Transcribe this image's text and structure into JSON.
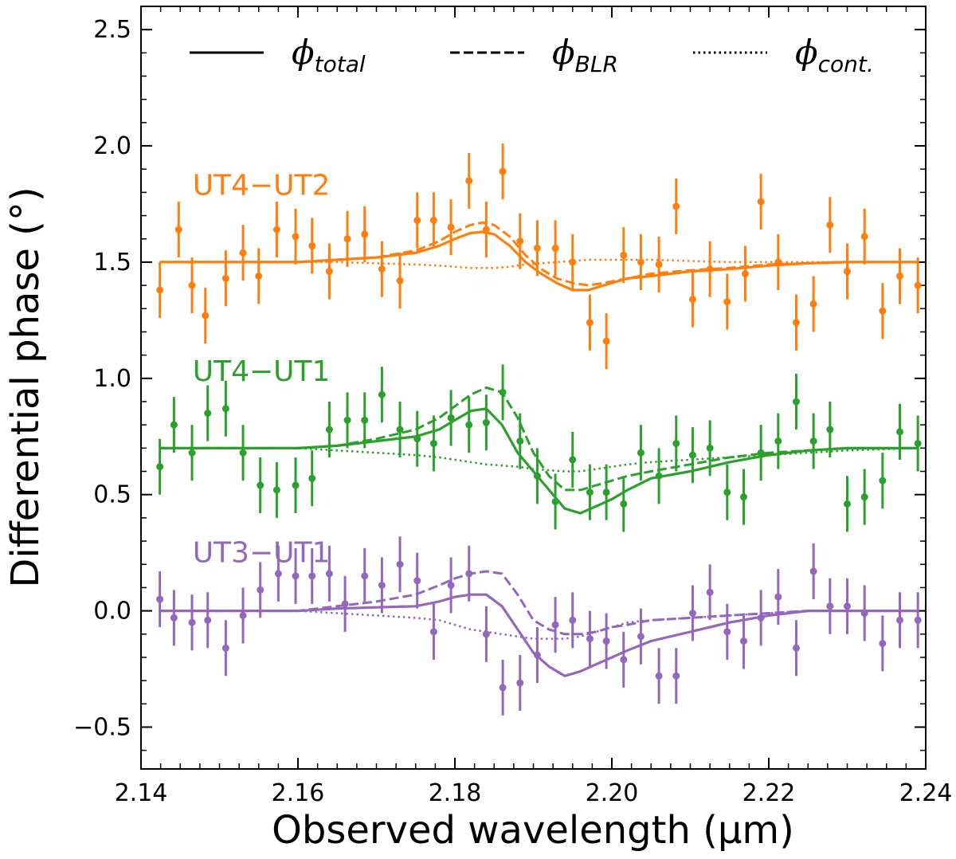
{
  "chart_data": {
    "type": "line",
    "title": "",
    "xlabel": "Observed wavelength (μm)",
    "ylabel": "Differential phase (°)",
    "xlim": [
      2.14,
      2.24
    ],
    "ylim": [
      -0.68,
      2.6
    ],
    "xticks": [
      {
        "value": 2.14,
        "label": "2.14"
      },
      {
        "value": 2.16,
        "label": "2.16"
      },
      {
        "value": 2.18,
        "label": "2.18"
      },
      {
        "value": 2.2,
        "label": "2.20"
      },
      {
        "value": 2.22,
        "label": "2.22"
      },
      {
        "value": 2.24,
        "label": "2.24"
      }
    ],
    "yticks": [
      {
        "value": -0.5,
        "label": "−0.5"
      },
      {
        "value": 0.0,
        "label": "0.0"
      },
      {
        "value": 0.5,
        "label": "0.5"
      },
      {
        "value": 1.0,
        "label": "1.0"
      },
      {
        "value": 1.5,
        "label": "1.5"
      },
      {
        "value": 2.0,
        "label": "2.0"
      },
      {
        "value": 2.5,
        "label": "2.5"
      }
    ],
    "legend": {
      "position": "top",
      "entries": [
        {
          "style": "solid",
          "symbol": "ϕ",
          "sub": "total"
        },
        {
          "style": "dashed",
          "symbol": "ϕ",
          "sub": "BLR"
        },
        {
          "style": "dotted",
          "symbol": "ϕ",
          "sub": "cont."
        }
      ]
    },
    "series": [
      {
        "name": "UT4−UT2",
        "color": "#ff7f0e",
        "label_pos": [
          2.1415,
          1.83
        ],
        "x": [
          2.1424,
          2.1448,
          2.1465,
          2.1482,
          2.1508,
          2.153,
          2.155,
          2.1573,
          2.1597,
          2.1618,
          2.164,
          2.1663,
          2.1685,
          2.1707,
          2.173,
          2.1752,
          2.1773,
          2.1795,
          2.1818,
          2.184,
          2.1861,
          2.1883,
          2.1905,
          2.1928,
          2.195,
          2.1972,
          2.1993,
          2.2015,
          2.2037,
          2.206,
          2.2082,
          2.2103,
          2.2125,
          2.2147,
          2.217,
          2.219,
          2.2212,
          2.2235,
          2.2257,
          2.2278,
          2.23,
          2.2322,
          2.2345,
          2.2367,
          2.239
        ],
        "y": [
          1.38,
          1.64,
          1.4,
          1.27,
          1.43,
          1.54,
          1.44,
          1.64,
          1.61,
          1.57,
          1.46,
          1.6,
          1.62,
          1.47,
          1.42,
          1.68,
          1.68,
          1.65,
          1.85,
          1.64,
          1.89,
          1.59,
          1.56,
          1.56,
          1.5,
          1.24,
          1.16,
          1.53,
          1.5,
          1.49,
          1.74,
          1.34,
          1.47,
          1.33,
          1.45,
          1.76,
          1.5,
          1.24,
          1.32,
          1.66,
          1.46,
          1.61,
          1.29,
          1.44,
          1.4
        ],
        "err": [
          0.12,
          0.12,
          0.12,
          0.12,
          0.12,
          0.12,
          0.12,
          0.12,
          0.12,
          0.12,
          0.12,
          0.12,
          0.12,
          0.12,
          0.12,
          0.12,
          0.12,
          0.12,
          0.12,
          0.12,
          0.12,
          0.12,
          0.12,
          0.12,
          0.12,
          0.12,
          0.12,
          0.12,
          0.12,
          0.12,
          0.12,
          0.12,
          0.12,
          0.12,
          0.12,
          0.12,
          0.12,
          0.12,
          0.12,
          0.12,
          0.12,
          0.12,
          0.12,
          0.12,
          0.12
        ],
        "model_x": [
          2.1424,
          2.15,
          2.16,
          2.165,
          2.17,
          2.175,
          2.178,
          2.18,
          2.182,
          2.1835,
          2.185,
          2.187,
          2.189,
          2.191,
          2.193,
          2.195,
          2.197,
          2.199,
          2.202,
          2.205,
          2.21,
          2.215,
          2.22,
          2.225,
          2.23,
          2.239
        ],
        "total": [
          1.5,
          1.5,
          1.5,
          1.51,
          1.52,
          1.54,
          1.57,
          1.6,
          1.625,
          1.63,
          1.62,
          1.57,
          1.5,
          1.45,
          1.41,
          1.38,
          1.38,
          1.4,
          1.43,
          1.44,
          1.46,
          1.47,
          1.485,
          1.495,
          1.5,
          1.5
        ],
        "blr": [
          1.5,
          1.5,
          1.5,
          1.51,
          1.52,
          1.55,
          1.59,
          1.63,
          1.66,
          1.67,
          1.66,
          1.61,
          1.53,
          1.47,
          1.43,
          1.41,
          1.4,
          1.41,
          1.43,
          1.45,
          1.465,
          1.475,
          1.49,
          1.495,
          1.5,
          1.5
        ],
        "cont": [
          1.5,
          1.5,
          1.5,
          1.5,
          1.495,
          1.49,
          1.485,
          1.48,
          1.475,
          1.475,
          1.475,
          1.48,
          1.49,
          1.495,
          1.5,
          1.505,
          1.51,
          1.51,
          1.51,
          1.51,
          1.505,
          1.5,
          1.5,
          1.5,
          1.5,
          1.5
        ]
      },
      {
        "name": "UT4−UT1",
        "color": "#2ca02c",
        "label_pos": [
          2.1415,
          1.03
        ],
        "x": [
          2.1424,
          2.1442,
          2.1465,
          2.1485,
          2.1508,
          2.153,
          2.1552,
          2.1573,
          2.1597,
          2.1618,
          2.164,
          2.1663,
          2.1685,
          2.1707,
          2.173,
          2.1752,
          2.1773,
          2.1795,
          2.1818,
          2.184,
          2.1861,
          2.1883,
          2.1905,
          2.1928,
          2.195,
          2.1972,
          2.1993,
          2.2015,
          2.2037,
          2.206,
          2.2082,
          2.2103,
          2.2125,
          2.2147,
          2.2168,
          2.219,
          2.2212,
          2.2235,
          2.2257,
          2.2278,
          2.23,
          2.2322,
          2.2345,
          2.2367,
          2.239
        ],
        "y": [
          0.62,
          0.8,
          0.68,
          0.85,
          0.87,
          0.68,
          0.54,
          0.52,
          0.54,
          0.57,
          0.78,
          0.82,
          0.82,
          0.93,
          0.78,
          0.74,
          0.72,
          0.83,
          0.8,
          0.81,
          0.94,
          0.73,
          0.58,
          0.47,
          0.65,
          0.51,
          0.51,
          0.46,
          0.68,
          0.58,
          0.72,
          0.67,
          0.7,
          0.51,
          0.49,
          0.68,
          0.73,
          0.9,
          0.73,
          0.78,
          0.46,
          0.49,
          0.56,
          0.77,
          0.72
        ],
        "err": [
          0.12,
          0.12,
          0.12,
          0.12,
          0.12,
          0.12,
          0.12,
          0.12,
          0.12,
          0.12,
          0.12,
          0.12,
          0.12,
          0.12,
          0.12,
          0.12,
          0.12,
          0.12,
          0.12,
          0.12,
          0.12,
          0.12,
          0.12,
          0.12,
          0.12,
          0.12,
          0.12,
          0.12,
          0.12,
          0.12,
          0.12,
          0.12,
          0.12,
          0.12,
          0.12,
          0.12,
          0.12,
          0.12,
          0.12,
          0.12,
          0.12,
          0.12,
          0.12,
          0.12,
          0.12
        ],
        "model_x": [
          2.1424,
          2.15,
          2.16,
          2.165,
          2.17,
          2.175,
          2.178,
          2.18,
          2.182,
          2.184,
          2.186,
          2.188,
          2.19,
          2.192,
          2.194,
          2.196,
          2.198,
          2.2,
          2.202,
          2.205,
          2.21,
          2.215,
          2.22,
          2.225,
          2.23,
          2.239
        ],
        "total": [
          0.7,
          0.7,
          0.7,
          0.71,
          0.73,
          0.75,
          0.78,
          0.82,
          0.86,
          0.87,
          0.8,
          0.68,
          0.6,
          0.52,
          0.44,
          0.42,
          0.45,
          0.48,
          0.52,
          0.57,
          0.6,
          0.64,
          0.67,
          0.69,
          0.7,
          0.7
        ],
        "blr": [
          0.7,
          0.7,
          0.7,
          0.71,
          0.74,
          0.78,
          0.83,
          0.88,
          0.93,
          0.96,
          0.94,
          0.83,
          0.68,
          0.58,
          0.52,
          0.52,
          0.54,
          0.56,
          0.58,
          0.6,
          0.63,
          0.66,
          0.68,
          0.69,
          0.7,
          0.7
        ],
        "cont": [
          0.7,
          0.7,
          0.7,
          0.69,
          0.68,
          0.67,
          0.66,
          0.65,
          0.64,
          0.63,
          0.625,
          0.62,
          0.61,
          0.605,
          0.6,
          0.6,
          0.61,
          0.62,
          0.63,
          0.64,
          0.65,
          0.66,
          0.67,
          0.68,
          0.69,
          0.7
        ]
      },
      {
        "name": "UT3−UT1",
        "color": "#9467bd",
        "label_pos": [
          2.1415,
          0.25
        ],
        "x": [
          2.1424,
          2.1442,
          2.1465,
          2.1485,
          2.1508,
          2.153,
          2.1552,
          2.1575,
          2.1597,
          2.1618,
          2.164,
          2.166,
          2.1685,
          2.1707,
          2.173,
          2.1752,
          2.1773,
          2.1795,
          2.1818,
          2.184,
          2.1861,
          2.1883,
          2.1905,
          2.1928,
          2.195,
          2.1972,
          2.1993,
          2.2015,
          2.2037,
          2.206,
          2.2082,
          2.2103,
          2.2125,
          2.2147,
          2.2168,
          2.219,
          2.2212,
          2.2235,
          2.2257,
          2.2278,
          2.23,
          2.2322,
          2.2345,
          2.2367,
          2.239
        ],
        "y": [
          0.05,
          -0.03,
          -0.05,
          -0.04,
          -0.16,
          -0.02,
          0.09,
          0.16,
          0.15,
          0.15,
          0.16,
          0.03,
          0.15,
          0.11,
          0.2,
          0.13,
          -0.09,
          0.11,
          0.16,
          -0.1,
          -0.33,
          -0.31,
          -0.19,
          -0.06,
          -0.04,
          -0.12,
          -0.13,
          -0.21,
          -0.11,
          -0.28,
          -0.28,
          -0.01,
          0.08,
          -0.09,
          -0.13,
          -0.03,
          0.06,
          -0.16,
          0.17,
          0.02,
          0.02,
          -0.01,
          -0.14,
          -0.04,
          -0.04
        ],
        "err": [
          0.12,
          0.12,
          0.12,
          0.12,
          0.12,
          0.12,
          0.12,
          0.12,
          0.12,
          0.12,
          0.12,
          0.12,
          0.12,
          0.12,
          0.12,
          0.12,
          0.12,
          0.12,
          0.12,
          0.12,
          0.12,
          0.12,
          0.12,
          0.12,
          0.12,
          0.12,
          0.12,
          0.12,
          0.12,
          0.12,
          0.12,
          0.12,
          0.12,
          0.12,
          0.12,
          0.12,
          0.12,
          0.12,
          0.12,
          0.12,
          0.12,
          0.12,
          0.12,
          0.12,
          0.12
        ],
        "model_x": [
          2.1424,
          2.15,
          2.16,
          2.165,
          2.17,
          2.175,
          2.178,
          2.18,
          2.182,
          2.184,
          2.186,
          2.188,
          2.19,
          2.192,
          2.194,
          2.196,
          2.198,
          2.2,
          2.202,
          2.205,
          2.21,
          2.215,
          2.22,
          2.225,
          2.23,
          2.239
        ],
        "total": [
          0.0,
          0.0,
          0.0,
          0.01,
          0.015,
          0.02,
          0.04,
          0.06,
          0.07,
          0.07,
          0.02,
          -0.08,
          -0.18,
          -0.24,
          -0.28,
          -0.26,
          -0.23,
          -0.2,
          -0.17,
          -0.13,
          -0.09,
          -0.05,
          -0.02,
          0.0,
          0.0,
          0.0
        ],
        "blr": [
          0.0,
          0.0,
          0.0,
          0.02,
          0.04,
          0.07,
          0.11,
          0.14,
          0.16,
          0.17,
          0.16,
          0.07,
          -0.04,
          -0.08,
          -0.1,
          -0.1,
          -0.09,
          -0.07,
          -0.06,
          -0.04,
          -0.03,
          -0.02,
          -0.01,
          0.0,
          0.0,
          0.0
        ],
        "cont": [
          0.0,
          0.0,
          0.0,
          -0.01,
          -0.02,
          -0.03,
          -0.04,
          -0.06,
          -0.08,
          -0.09,
          -0.1,
          -0.11,
          -0.12,
          -0.12,
          -0.12,
          -0.11,
          -0.09,
          -0.07,
          -0.05,
          -0.04,
          -0.03,
          -0.02,
          -0.01,
          0.0,
          0.0,
          0.0
        ]
      }
    ]
  }
}
